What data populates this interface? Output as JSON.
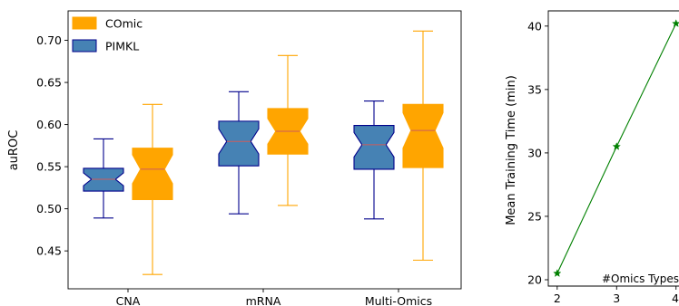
{
  "chart_data": [
    {
      "type": "box",
      "title": "",
      "xlabel": "",
      "ylabel": "auROC",
      "ylim": [
        0.405,
        0.735
      ],
      "yticks": [
        0.45,
        0.5,
        0.55,
        0.6,
        0.65,
        0.7
      ],
      "ytick_labels": [
        "0.45",
        "0.50",
        "0.55",
        "0.60",
        "0.65",
        "0.70"
      ],
      "categories": [
        "CNA",
        "mRNA",
        "Multi-Omics"
      ],
      "legend_position": "top-left",
      "series": [
        {
          "name": "PIMKL",
          "color": "#4682b4",
          "edge_color": "#00008b",
          "median_color": "#cd5c5c",
          "boxes": [
            {
              "whislo": 0.489,
              "q1": 0.521,
              "med": 0.535,
              "q3": 0.548,
              "whishi": 0.583
            },
            {
              "whislo": 0.494,
              "q1": 0.551,
              "med": 0.58,
              "q3": 0.604,
              "whishi": 0.639
            },
            {
              "whislo": 0.488,
              "q1": 0.547,
              "med": 0.576,
              "q3": 0.599,
              "whishi": 0.628
            }
          ]
        },
        {
          "name": "COmic",
          "color": "#ffa500",
          "edge_color": "#ffa500",
          "median_color": "#cd5c5c",
          "boxes": [
            {
              "whislo": 0.422,
              "q1": 0.511,
              "med": 0.547,
              "q3": 0.572,
              "whishi": 0.624
            },
            {
              "whislo": 0.504,
              "q1": 0.565,
              "med": 0.592,
              "q3": 0.619,
              "whishi": 0.682
            },
            {
              "whislo": 0.439,
              "q1": 0.549,
              "med": 0.593,
              "q3": 0.624,
              "whishi": 0.711
            }
          ]
        }
      ]
    },
    {
      "type": "line",
      "title": "",
      "xlabel": "#Omics Types",
      "ylabel": "Mean Training Time (min)",
      "x": [
        2,
        3,
        4
      ],
      "xtick_labels": [
        "2",
        "3",
        "4"
      ],
      "yticks": [
        20,
        25,
        30,
        35,
        40
      ],
      "ytick_labels": [
        "20",
        "25",
        "30",
        "35",
        "40"
      ],
      "xlim": [
        1.85,
        4.05
      ],
      "ylim": [
        19.5,
        41.2
      ],
      "series": [
        {
          "name": "",
          "color": "#008000",
          "marker": "star",
          "values": [
            20.5,
            30.5,
            40.2
          ]
        }
      ]
    }
  ]
}
